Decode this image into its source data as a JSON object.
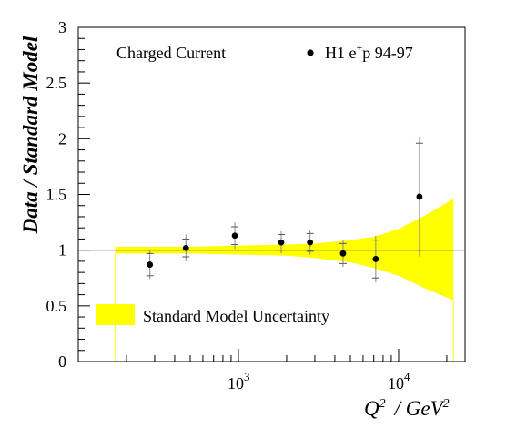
{
  "chart_data": {
    "type": "scatter",
    "xscale": "log",
    "ylim": [
      0,
      3
    ],
    "xlim": [
      100,
      26000
    ],
    "grid": false,
    "ylabel": "Data / Standard Model",
    "xlabel": {
      "main": "Q",
      "exp": "2",
      "unit": "/ GeV",
      "unit_exp": "2"
    },
    "yticks": [
      {
        "value": 0,
        "label": "0"
      },
      {
        "value": 0.5,
        "label": "0.5"
      },
      {
        "value": 1,
        "label": "1"
      },
      {
        "value": 1.5,
        "label": "1.5"
      },
      {
        "value": 2,
        "label": "2"
      },
      {
        "value": 2.5,
        "label": "2.5"
      },
      {
        "value": 3,
        "label": "3"
      }
    ],
    "xticks_major": [
      {
        "value": 1000,
        "base": "10",
        "exp": "3"
      },
      {
        "value": 10000,
        "base": "10",
        "exp": "4"
      }
    ],
    "annotations": {
      "process": "Charged Current",
      "legend_data": {
        "prefix": "H1 e",
        "sup": "+",
        "suffix": "p 94-97",
        "placement": "top-right"
      },
      "legend_band": {
        "label": "Standard Model Uncertainty",
        "placement": "bottom-left",
        "color": "#ffff00"
      }
    },
    "reference_line": 1.0,
    "band": {
      "name": "Standard Model Uncertainty",
      "color": "#ffff00",
      "points": [
        {
          "x": 170,
          "upper": 1.03,
          "lower": 0.97
        },
        {
          "x": 500,
          "upper": 1.03,
          "lower": 0.97
        },
        {
          "x": 1000,
          "upper": 1.04,
          "lower": 0.96
        },
        {
          "x": 2000,
          "upper": 1.05,
          "lower": 0.95
        },
        {
          "x": 3000,
          "upper": 1.06,
          "lower": 0.93
        },
        {
          "x": 5000,
          "upper": 1.09,
          "lower": 0.89
        },
        {
          "x": 7000,
          "upper": 1.12,
          "lower": 0.84
        },
        {
          "x": 10000,
          "upper": 1.19,
          "lower": 0.77
        },
        {
          "x": 15000,
          "upper": 1.32,
          "lower": 0.65
        },
        {
          "x": 22000,
          "upper": 1.46,
          "lower": 0.55
        }
      ]
    },
    "series": [
      {
        "name": "H1 e+p 94-97",
        "color": "#000000",
        "points": [
          {
            "x": 280,
            "y": 0.87,
            "stat_up": 0.1,
            "stat_dn": 0.1,
            "tot_up": 0.13,
            "tot_dn": 0.13
          },
          {
            "x": 470,
            "y": 1.02,
            "stat_up": 0.08,
            "stat_dn": 0.08,
            "tot_up": 0.12,
            "tot_dn": 0.12
          },
          {
            "x": 950,
            "y": 1.13,
            "stat_up": 0.08,
            "stat_dn": 0.08,
            "tot_up": 0.12,
            "tot_dn": 0.12
          },
          {
            "x": 1850,
            "y": 1.07,
            "stat_up": 0.07,
            "stat_dn": 0.07,
            "tot_up": 0.1,
            "tot_dn": 0.1
          },
          {
            "x": 2800,
            "y": 1.07,
            "stat_up": 0.08,
            "stat_dn": 0.08,
            "tot_up": 0.11,
            "tot_dn": 0.11
          },
          {
            "x": 4500,
            "y": 0.97,
            "stat_up": 0.09,
            "stat_dn": 0.09,
            "tot_up": 0.12,
            "tot_dn": 0.12
          },
          {
            "x": 7200,
            "y": 0.92,
            "stat_up": 0.17,
            "stat_dn": 0.17,
            "tot_up": 0.21,
            "tot_dn": 0.21
          },
          {
            "x": 13500,
            "y": 1.48,
            "stat_up": 0.48,
            "stat_dn": 0.48,
            "tot_up": 0.54,
            "tot_dn": 0.54
          }
        ]
      }
    ]
  }
}
